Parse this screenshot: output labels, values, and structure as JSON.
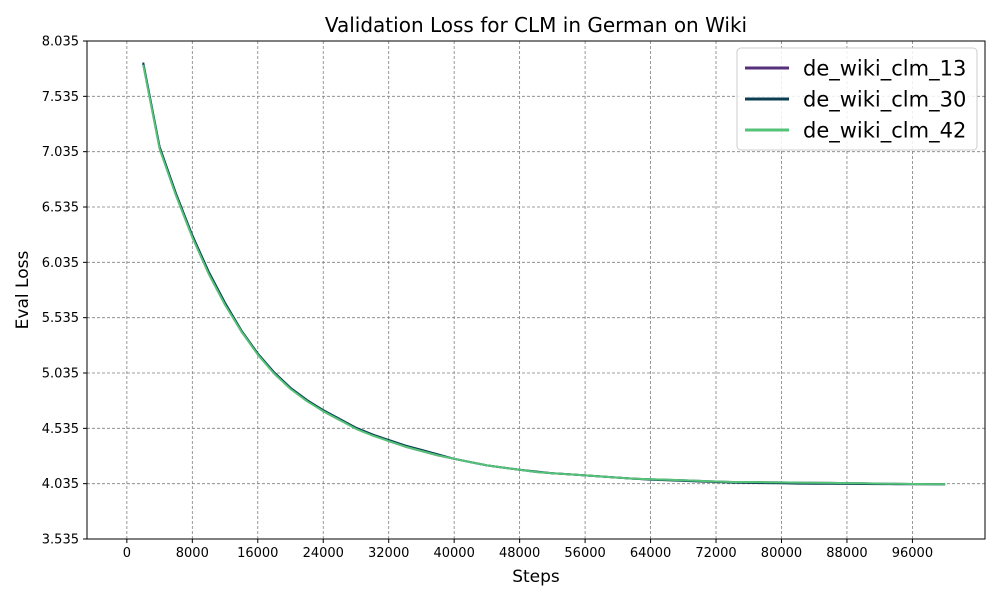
{
  "chart_data": {
    "type": "line",
    "title": "Validation Loss for CLM in German on Wiki",
    "xlabel": "Steps",
    "ylabel": "Eval Loss",
    "xlim": [
      -4870,
      104870
    ],
    "ylim": [
      3.535,
      8.035
    ],
    "xticks": [
      0,
      8000,
      16000,
      24000,
      32000,
      40000,
      48000,
      56000,
      64000,
      72000,
      80000,
      88000,
      96000
    ],
    "xtick_labels": [
      "0",
      "8000",
      "16000",
      "24000",
      "32000",
      "40000",
      "48000",
      "56000",
      "64000",
      "72000",
      "80000",
      "88000",
      "96000"
    ],
    "yticks": [
      3.535,
      4.035,
      4.535,
      5.035,
      5.535,
      6.035,
      6.535,
      7.035,
      7.535,
      8.035
    ],
    "ytick_labels": [
      "3.535",
      "4.035",
      "4.535",
      "5.035",
      "5.535",
      "6.035",
      "6.535",
      "7.035",
      "7.535",
      "8.035"
    ],
    "grid": true,
    "legend_position": "top-right",
    "series": [
      {
        "name": "de_wiki_clm_13",
        "color": "#55307b",
        "x": [
          2000,
          4000,
          6000,
          8000,
          10000,
          12000,
          14000,
          16000,
          18000,
          20000,
          22000,
          24000,
          26000,
          28000,
          30000,
          32000,
          34000,
          36000,
          38000,
          40000,
          42000,
          44000,
          46000,
          48000,
          50000,
          52000,
          54000,
          56000,
          58000,
          60000,
          62000,
          64000,
          66000,
          68000,
          70000,
          72000,
          74000,
          76000,
          78000,
          80000,
          82000,
          84000,
          86000,
          88000,
          90000,
          92000,
          94000,
          96000,
          98000,
          100000
        ],
        "y": [
          7.83,
          7.07,
          6.65,
          6.27,
          5.94,
          5.66,
          5.41,
          5.21,
          5.04,
          4.9,
          4.79,
          4.69,
          4.61,
          4.54,
          4.48,
          4.42,
          4.37,
          4.33,
          4.29,
          4.26,
          4.23,
          4.2,
          4.18,
          4.16,
          4.14,
          4.13,
          4.12,
          4.11,
          4.1,
          4.09,
          4.08,
          4.075,
          4.07,
          4.065,
          4.06,
          4.055,
          4.05,
          4.05,
          4.048,
          4.046,
          4.045,
          4.044,
          4.042,
          4.04,
          4.038,
          4.036,
          4.034,
          4.032,
          4.031,
          4.03
        ]
      },
      {
        "name": "de_wiki_clm_30",
        "color": "#0b3d52",
        "x": [
          2000,
          4000,
          6000,
          8000,
          10000,
          12000,
          14000,
          16000,
          18000,
          20000,
          22000,
          24000,
          26000,
          28000,
          30000,
          32000,
          34000,
          36000,
          38000,
          40000,
          42000,
          44000,
          46000,
          48000,
          50000,
          52000,
          54000,
          56000,
          58000,
          60000,
          62000,
          64000,
          66000,
          68000,
          70000,
          72000,
          74000,
          76000,
          78000,
          80000,
          82000,
          84000,
          86000,
          88000,
          90000,
          92000,
          94000,
          96000,
          98000,
          100000
        ],
        "y": [
          7.84,
          7.08,
          6.66,
          6.28,
          5.95,
          5.67,
          5.42,
          5.21,
          5.04,
          4.9,
          4.79,
          4.7,
          4.62,
          4.54,
          4.48,
          4.43,
          4.38,
          4.34,
          4.3,
          4.26,
          4.23,
          4.2,
          4.18,
          4.16,
          4.145,
          4.13,
          4.12,
          4.11,
          4.1,
          4.09,
          4.08,
          4.07,
          4.065,
          4.06,
          4.055,
          4.05,
          4.045,
          4.042,
          4.04,
          4.038,
          4.036,
          4.035,
          4.034,
          4.033,
          4.032,
          4.031,
          4.03,
          4.03,
          4.029,
          4.028
        ]
      },
      {
        "name": "de_wiki_clm_42",
        "color": "#54c378",
        "x": [
          2000,
          4000,
          6000,
          8000,
          10000,
          12000,
          14000,
          16000,
          18000,
          20000,
          22000,
          24000,
          26000,
          28000,
          30000,
          32000,
          34000,
          36000,
          38000,
          40000,
          42000,
          44000,
          46000,
          48000,
          50000,
          52000,
          54000,
          56000,
          58000,
          60000,
          62000,
          64000,
          66000,
          68000,
          70000,
          72000,
          74000,
          76000,
          78000,
          80000,
          82000,
          84000,
          86000,
          88000,
          90000,
          92000,
          94000,
          96000,
          98000,
          100000
        ],
        "y": [
          7.82,
          7.06,
          6.64,
          6.26,
          5.93,
          5.65,
          5.41,
          5.2,
          5.03,
          4.89,
          4.78,
          4.69,
          4.61,
          4.53,
          4.47,
          4.42,
          4.37,
          4.33,
          4.29,
          4.26,
          4.23,
          4.2,
          4.18,
          4.16,
          4.14,
          4.13,
          4.12,
          4.11,
          4.1,
          4.09,
          4.08,
          4.075,
          4.07,
          4.065,
          4.06,
          4.055,
          4.05,
          4.05,
          4.048,
          4.046,
          4.045,
          4.044,
          4.042,
          4.04,
          4.038,
          4.036,
          4.034,
          4.032,
          4.031,
          4.03
        ]
      }
    ]
  }
}
